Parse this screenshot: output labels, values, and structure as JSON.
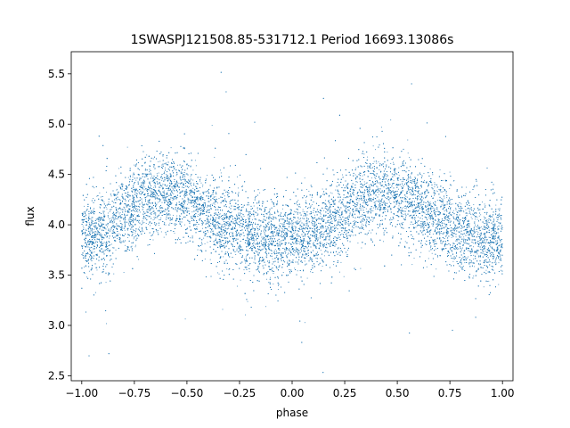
{
  "chart_data": {
    "type": "scatter",
    "title": "1SWASPJ121508.85-531712.1 Period 16693.13086s",
    "xlabel": "phase",
    "ylabel": "flux",
    "xlim": [
      -1.05,
      1.05
    ],
    "ylim": [
      2.45,
      5.72
    ],
    "xticks": [
      -1.0,
      -0.75,
      -0.5,
      -0.25,
      0.0,
      0.25,
      0.5,
      0.75,
      1.0
    ],
    "xtick_labels": [
      "−1.00",
      "−0.75",
      "−0.50",
      "−0.25",
      "0.00",
      "0.25",
      "0.50",
      "0.75",
      "1.00"
    ],
    "yticks": [
      2.5,
      3.0,
      3.5,
      4.0,
      4.5,
      5.0,
      5.5
    ],
    "ytick_labels": [
      "2.5",
      "3.0",
      "3.5",
      "4.0",
      "4.5",
      "5.0",
      "5.5"
    ],
    "grid": false,
    "marker_color": "#1f77b4",
    "series": [
      {
        "name": "",
        "x_range": [
          -1.0,
          1.0
        ],
        "point_count": 18000,
        "trend": {
          "x": [
            -1.0,
            -0.9,
            -0.8,
            -0.7,
            -0.6,
            -0.5,
            -0.4,
            -0.3,
            -0.2,
            -0.1,
            0.0,
            0.1,
            0.2,
            0.3,
            0.4,
            0.5,
            0.6,
            0.7,
            0.8,
            0.9,
            1.0
          ],
          "y": [
            3.87,
            3.93,
            4.1,
            4.28,
            4.33,
            4.24,
            4.1,
            3.98,
            3.9,
            3.86,
            3.85,
            3.9,
            4.02,
            4.23,
            4.32,
            4.28,
            4.15,
            4.03,
            3.93,
            3.88,
            3.87
          ]
        },
        "scatter_sd": 0.2
      }
    ]
  }
}
